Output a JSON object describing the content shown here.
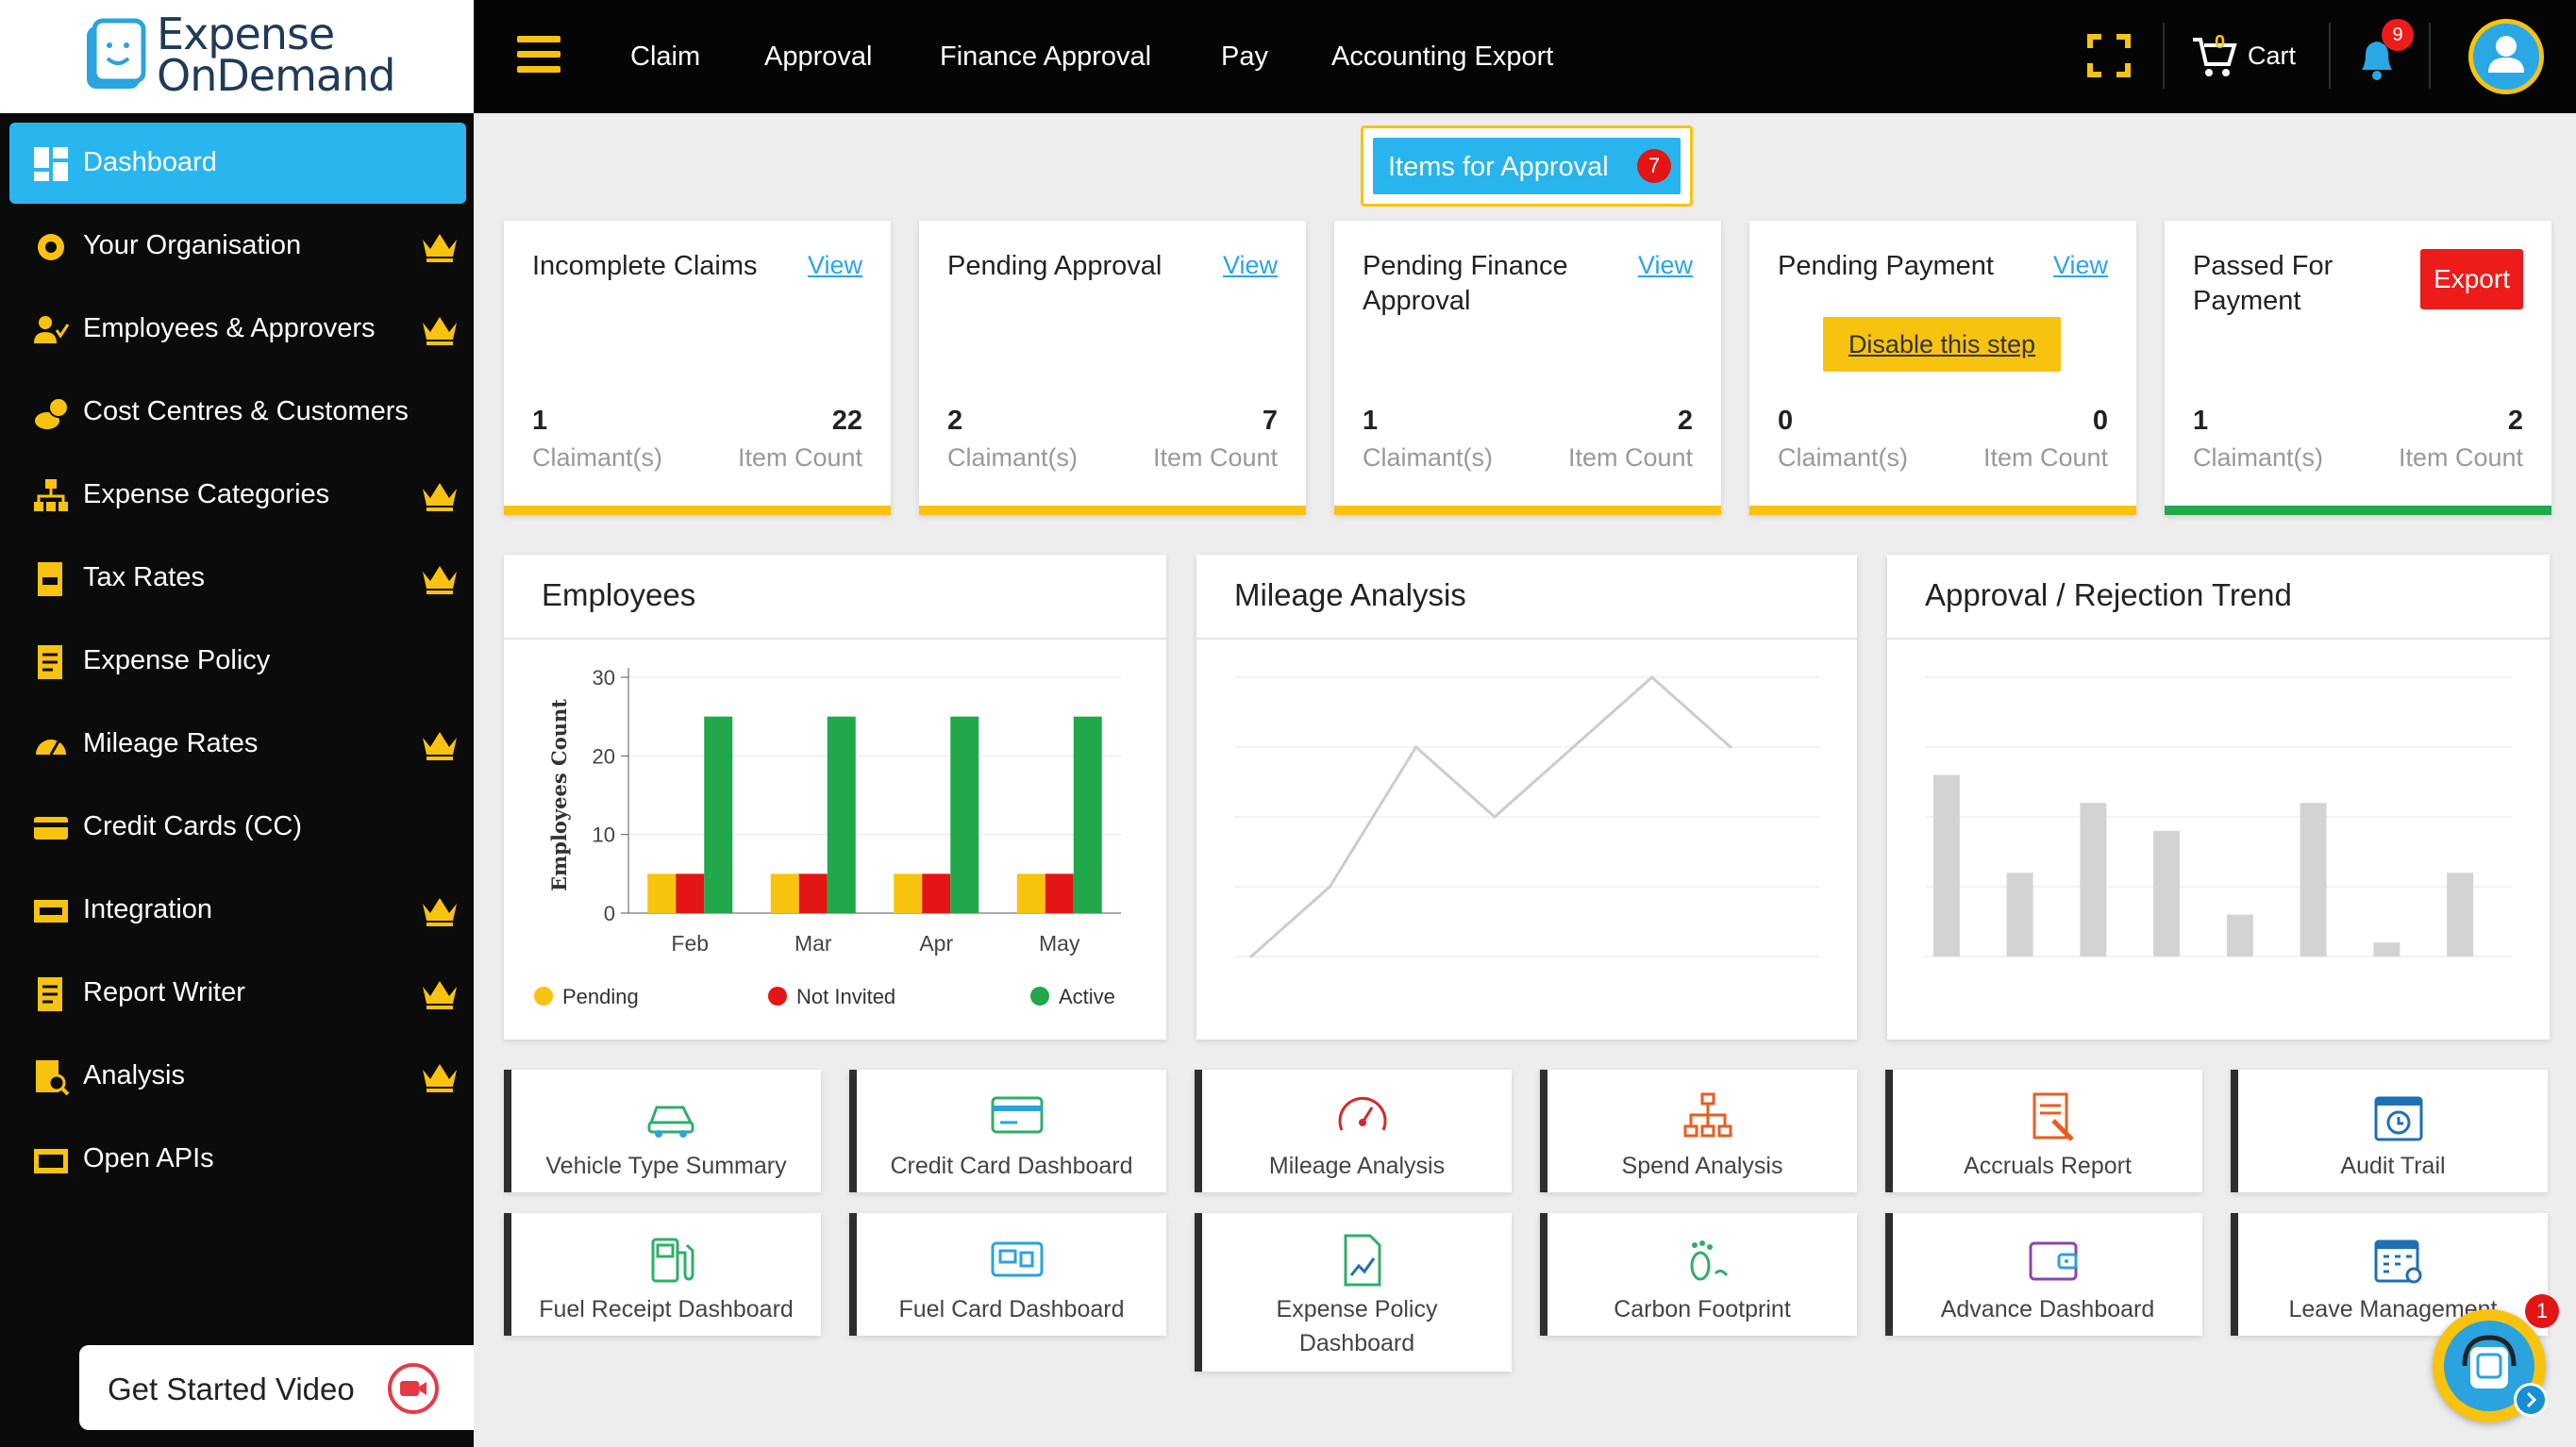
{
  "brand": {
    "line1": "Expense",
    "line2": "OnDemand"
  },
  "topnav": {
    "items": [
      "Claim",
      "Approval",
      "Finance Approval",
      "Pay",
      "Accounting Export"
    ],
    "cart_count": "0",
    "cart_label": "Cart",
    "notification_count": "9"
  },
  "sidebar": {
    "items": [
      {
        "label": "Dashboard",
        "icon": "dashboard-icon",
        "premium": false,
        "active": true
      },
      {
        "label": "Your Organisation",
        "icon": "organisation-icon",
        "premium": true
      },
      {
        "label": "Employees & Approvers",
        "icon": "employees-icon",
        "premium": true
      },
      {
        "label": "Cost Centres & Customers",
        "icon": "cost-centres-icon",
        "premium": false
      },
      {
        "label": "Expense Categories",
        "icon": "categories-icon",
        "premium": true
      },
      {
        "label": "Tax Rates",
        "icon": "tax-icon",
        "premium": true
      },
      {
        "label": "Expense Policy",
        "icon": "policy-icon",
        "premium": false
      },
      {
        "label": "Mileage Rates",
        "icon": "mileage-icon",
        "premium": true
      },
      {
        "label": "Credit Cards (CC)",
        "icon": "credit-card-icon",
        "premium": false
      },
      {
        "label": "Integration",
        "icon": "integration-icon",
        "premium": true
      },
      {
        "label": "Report Writer",
        "icon": "report-icon",
        "premium": true
      },
      {
        "label": "Analysis",
        "icon": "analysis-icon",
        "premium": true
      },
      {
        "label": "Open APIs",
        "icon": "api-icon",
        "premium": false
      }
    ],
    "get_started": "Get Started Video"
  },
  "approval_button": {
    "label": "Items for Approval",
    "count": "7"
  },
  "stat_cards": [
    {
      "title": "Incomplete Claims",
      "action": "View",
      "claimants": "1",
      "claimants_label": "Claimant(s)",
      "items": "22",
      "items_label": "Item Count"
    },
    {
      "title": "Pending Approval",
      "action": "View",
      "claimants": "2",
      "claimants_label": "Claimant(s)",
      "items": "7",
      "items_label": "Item Count"
    },
    {
      "title": "Pending Finance Approval",
      "action": "View",
      "claimants": "1",
      "claimants_label": "Claimant(s)",
      "items": "2",
      "items_label": "Item Count"
    },
    {
      "title": "Pending Payment",
      "action": "View",
      "disable_label": "Disable this step",
      "claimants": "0",
      "claimants_label": "Claimant(s)",
      "items": "0",
      "items_label": "Item Count"
    },
    {
      "title": "Passed For Payment",
      "action": "Export",
      "claimants": "1",
      "claimants_label": "Claimant(s)",
      "items": "2",
      "items_label": "Item Count"
    }
  ],
  "panels": {
    "employees": "Employees",
    "mileage": "Mileage Analysis",
    "trend": "Approval / Rejection Trend"
  },
  "chart_data": [
    {
      "type": "bar",
      "title": "Employees",
      "categories": [
        "Feb",
        "Mar",
        "Apr",
        "May"
      ],
      "ylabel": "Employees Count",
      "ylim": [
        0,
        30
      ],
      "yticks": [
        "0",
        "10",
        "20",
        "30"
      ],
      "series": [
        {
          "name": "Pending",
          "values": [
            5,
            5,
            5,
            5
          ],
          "color": "#f8c30f"
        },
        {
          "name": "Not Invited",
          "values": [
            5,
            5,
            5,
            5
          ],
          "color": "#e41515"
        },
        {
          "name": "Active",
          "values": [
            25,
            25,
            25,
            25
          ],
          "color": "#20a84a"
        }
      ],
      "legend": "bottom"
    },
    {
      "type": "line",
      "title": "Mileage Analysis",
      "values": [
        0,
        10,
        30,
        20,
        30,
        40,
        30
      ],
      "ylim": [
        0,
        40
      ],
      "grid": true,
      "color": "#cccccc"
    },
    {
      "type": "bar",
      "title": "Approval / Rejection Trend",
      "values": [
        26,
        12,
        22,
        18,
        6,
        22,
        2,
        12
      ],
      "ylim": [
        0,
        40
      ],
      "grid": true,
      "color": "#d3d3d3"
    }
  ],
  "tiles": [
    {
      "label": "Vehicle Type Summary",
      "icon": "vehicle-icon"
    },
    {
      "label": "Credit Card Dashboard",
      "icon": "credit-card-dashboard-icon"
    },
    {
      "label": "Mileage Analysis",
      "icon": "speedometer-icon"
    },
    {
      "label": "Spend Analysis",
      "icon": "hierarchy-icon"
    },
    {
      "label": "Accruals Report",
      "icon": "accruals-icon"
    },
    {
      "label": "Audit Trail",
      "icon": "calendar-clock-icon"
    },
    {
      "label": "Fuel Receipt Dashboard",
      "icon": "fuel-icon"
    },
    {
      "label": "Fuel Card Dashboard",
      "icon": "fuel-card-icon"
    },
    {
      "label": "Expense Policy Dashboard",
      "icon": "policy-chart-icon"
    },
    {
      "label": "Carbon Footprint",
      "icon": "footprint-icon"
    },
    {
      "label": "Advance Dashboard",
      "icon": "wallet-icon"
    },
    {
      "label": "Leave Management",
      "icon": "calendar-gear-icon"
    }
  ],
  "chat_badge": "1",
  "colors": {
    "accent": "#29b6ef",
    "brand_yellow": "#f8c30f",
    "danger": "#e41515",
    "success": "#20a84a"
  }
}
